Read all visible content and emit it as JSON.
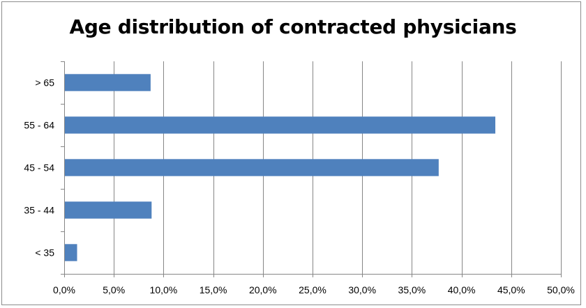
{
  "chart_data": {
    "type": "bar",
    "orientation": "horizontal",
    "title": "Age distribution of contracted physicians",
    "categories": [
      "> 65",
      "55 - 64",
      "45 - 54",
      "35 - 44",
      "< 35"
    ],
    "values": [
      8.7,
      43.4,
      37.7,
      8.8,
      1.3
    ],
    "xlim": [
      0,
      50
    ],
    "x_ticks": [
      "0,0%",
      "5,0%",
      "10,0%",
      "15,0%",
      "20,0%",
      "25,0%",
      "30,0%",
      "35,0%",
      "40,0%",
      "45,0%",
      "50,0%"
    ],
    "x_tick_values": [
      0,
      5,
      10,
      15,
      20,
      25,
      30,
      35,
      40,
      45,
      50
    ],
    "xlabel": "",
    "ylabel": "",
    "grid": "vertical major gridlines",
    "legend": "none",
    "bar_color": "#4f81bd",
    "gridline_color": "#868686"
  }
}
